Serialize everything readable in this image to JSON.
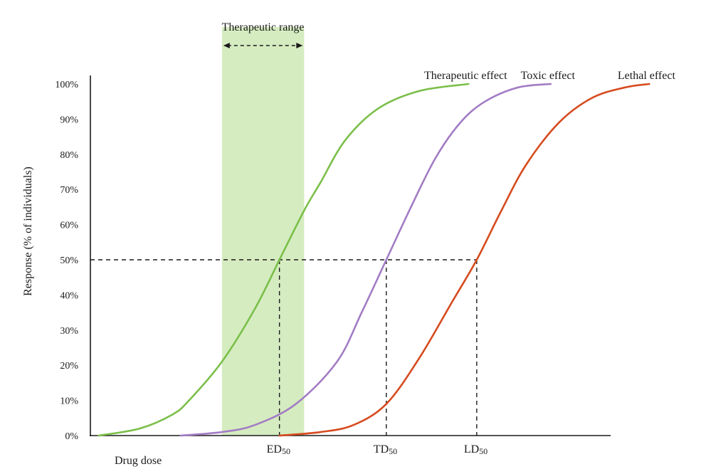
{
  "chart_data": {
    "type": "line",
    "xlabel": "Drug dose",
    "ylabel": "Response (% of individuals)",
    "ylim": [
      0,
      100
    ],
    "y_ticks": [
      "0%",
      "10%",
      "20%",
      "30%",
      "40%",
      "50%",
      "60%",
      "70%",
      "80%",
      "90%",
      "100%"
    ],
    "grid": false,
    "series": [
      {
        "name": "Therapeutic effect",
        "color": "#7bbf4a",
        "x": [
          0.1,
          0.6,
          1.0,
          1.2,
          1.6,
          2.0,
          2.3,
          2.6,
          2.8,
          3.1,
          3.5,
          4.0,
          4.6
        ],
        "y": [
          0,
          2,
          6,
          10,
          21,
          36,
          50,
          64,
          72,
          84,
          93,
          98,
          100
        ]
      },
      {
        "name": "Toxic effect",
        "color": "#a27cc4",
        "x": [
          1.1,
          1.6,
          2.0,
          2.5,
          3.0,
          3.3,
          3.6,
          3.9,
          4.2,
          4.5,
          4.8,
          5.2,
          5.6
        ],
        "y": [
          0,
          1,
          3,
          9,
          21,
          35,
          50,
          65,
          79,
          89,
          95,
          99,
          100
        ]
      },
      {
        "name": "Lethal effect",
        "color": "#d64b1e",
        "x": [
          2.3,
          2.8,
          3.2,
          3.6,
          4.0,
          4.4,
          4.7,
          5.0,
          5.3,
          5.7,
          6.1,
          6.5,
          6.8
        ],
        "y": [
          0,
          1,
          3,
          9,
          22,
          38,
          50,
          64,
          77,
          89,
          96,
          99,
          100
        ]
      }
    ],
    "markers": [
      {
        "label": "ED",
        "subscript": "50",
        "x": 2.3,
        "y": 50
      },
      {
        "label": "TD",
        "subscript": "50",
        "x": 3.6,
        "y": 50
      },
      {
        "label": "LD",
        "subscript": "50",
        "x": 4.7,
        "y": 50
      }
    ],
    "therapeutic_range": {
      "label": "Therapeutic range",
      "x_start": 1.6,
      "x_end": 2.6,
      "color": "#d5ecc0"
    }
  }
}
